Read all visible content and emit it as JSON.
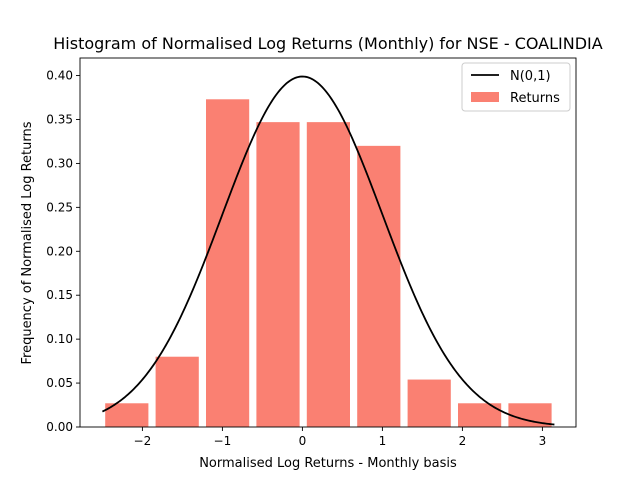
{
  "chart_data": {
    "type": "bar",
    "title": "Histogram of Normalised Log Returns (Monthly) for NSE - COALINDIA",
    "xlabel": "Normalised Log Returns - Monthly basis",
    "ylabel": "Frequency of Normalised Log Returns",
    "xlim": [
      -2.78,
      3.42
    ],
    "ylim": [
      0,
      0.42
    ],
    "x_ticks": [
      -2,
      -1,
      0,
      1,
      2,
      3
    ],
    "x_tick_labels": [
      "−2",
      "−1",
      "0",
      "1",
      "2",
      "3"
    ],
    "y_ticks": [
      0.0,
      0.05,
      0.1,
      0.15,
      0.2,
      0.25,
      0.3,
      0.35,
      0.4
    ],
    "y_tick_labels": [
      "0.00",
      "0.05",
      "0.10",
      "0.15",
      "0.20",
      "0.25",
      "0.30",
      "0.35",
      "0.40"
    ],
    "grid": false,
    "legend_position": "top-right",
    "series": [
      {
        "name": "Returns",
        "kind": "histogram",
        "color": "#fa8072",
        "bin_centers": [
          -2.195,
          -1.565,
          -0.935,
          -0.305,
          0.325,
          0.955,
          1.585,
          2.215,
          2.845
        ],
        "bar_width": 0.54,
        "values": [
          0.027,
          0.08,
          0.373,
          0.347,
          0.347,
          0.32,
          0.054,
          0.027,
          0.027
        ]
      },
      {
        "name": "N(0,1)",
        "kind": "line",
        "color": "#000000",
        "function": "standard_normal_pdf",
        "x_range": [
          -2.5,
          3.15
        ]
      }
    ]
  }
}
